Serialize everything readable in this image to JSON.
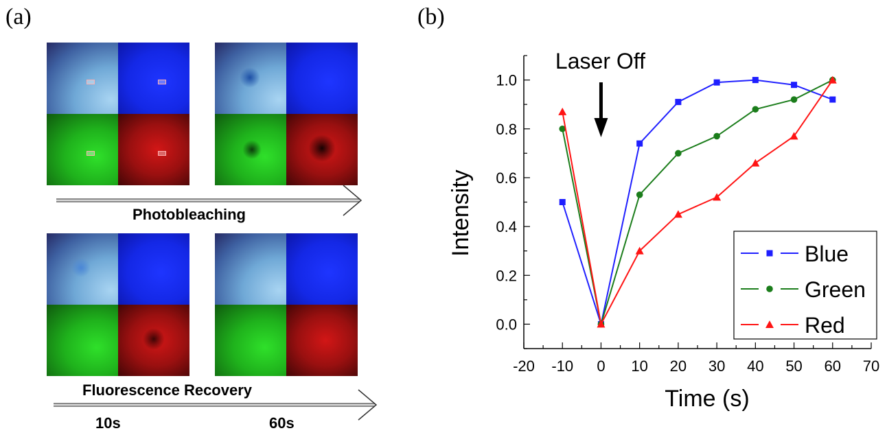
{
  "panel_labels": {
    "a": "(a)",
    "b": "(b)"
  },
  "left_panel": {
    "arrow1_label": "Photobleaching",
    "arrow2_label": "Fluorescence Recovery",
    "time_labels": [
      "10s",
      "60s"
    ]
  },
  "chart_data": {
    "type": "line",
    "title": "",
    "xlabel": "Time (s)",
    "ylabel": "Intensity",
    "xlim": [
      -20,
      70
    ],
    "ylim": [
      -0.1,
      1.1
    ],
    "xticks": [
      -20,
      -10,
      0,
      10,
      20,
      30,
      40,
      50,
      60,
      70
    ],
    "yticks": [
      0.0,
      0.2,
      0.4,
      0.6,
      0.8,
      1.0
    ],
    "annotation": {
      "text": "Laser Off",
      "x": 0
    },
    "legend_position": "bottom-right",
    "series": [
      {
        "name": "Blue",
        "color": "#1f1fff",
        "marker": "square",
        "x": [
          -10,
          0,
          10,
          20,
          30,
          40,
          50,
          60
        ],
        "y": [
          0.5,
          0.0,
          0.74,
          0.91,
          0.99,
          1.0,
          0.98,
          0.92
        ]
      },
      {
        "name": "Green",
        "color": "#1b7d1b",
        "marker": "circle",
        "x": [
          -10,
          0,
          10,
          20,
          30,
          40,
          50,
          60
        ],
        "y": [
          0.8,
          0.0,
          0.53,
          0.7,
          0.77,
          0.88,
          0.92,
          1.0
        ]
      },
      {
        "name": "Red",
        "color": "#ff1414",
        "marker": "triangle",
        "x": [
          -10,
          0,
          10,
          20,
          30,
          40,
          50,
          60
        ],
        "y": [
          0.87,
          0.0,
          0.3,
          0.45,
          0.52,
          0.66,
          0.77,
          1.0
        ]
      }
    ]
  }
}
